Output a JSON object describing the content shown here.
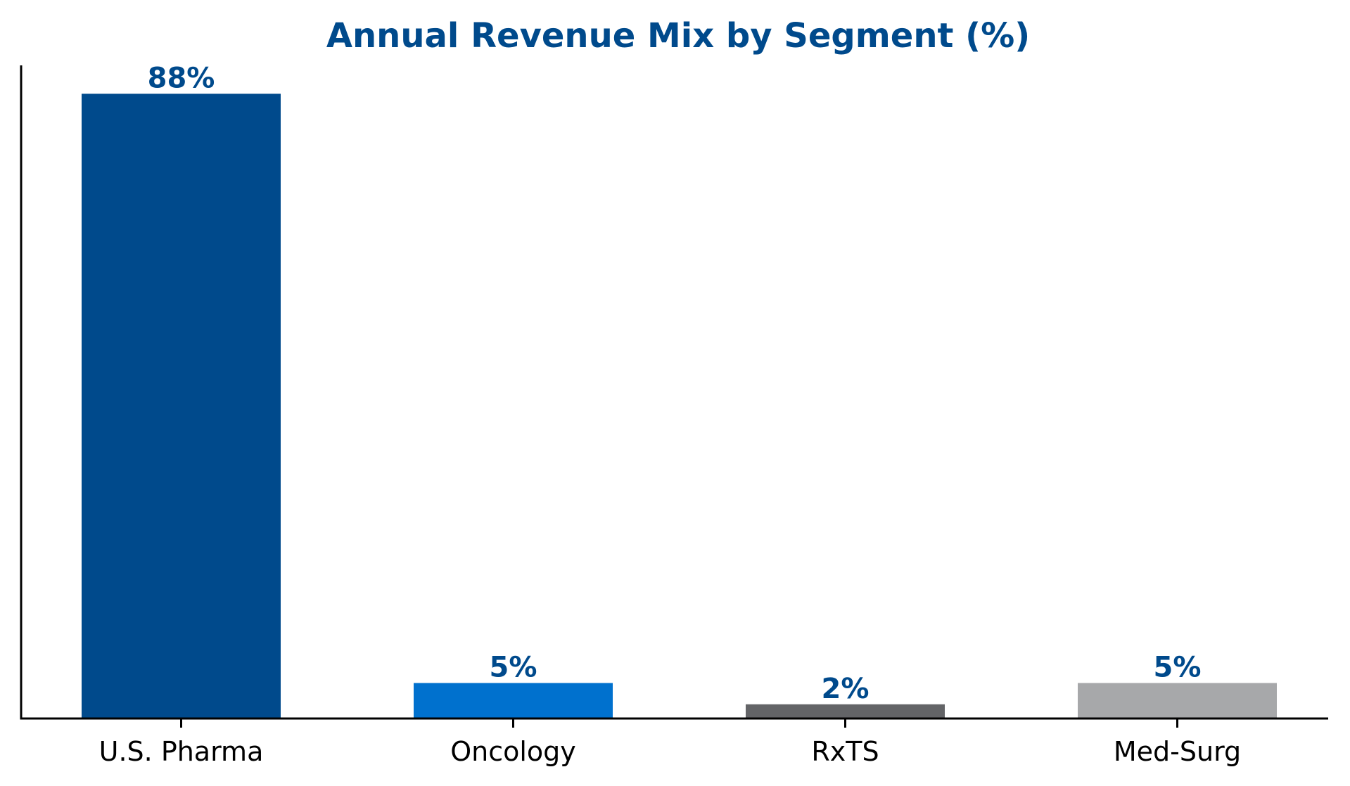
{
  "chart_data": {
    "type": "bar",
    "title": "Annual Revenue Mix by Segment (%)",
    "xlabel": "",
    "ylabel": "",
    "categories": [
      "U.S. Pharma",
      "Oncology",
      "RxTS",
      "Med-Surg"
    ],
    "values": [
      88,
      5,
      2,
      5
    ],
    "value_labels": [
      "88%",
      "5%",
      "2%",
      "5%"
    ],
    "colors": [
      "#004a8c",
      "#0071ce",
      "#636467",
      "#a7a8aa"
    ],
    "label_color": "#004a8c",
    "title_color": "#004a8c",
    "ylim": [
      0,
      92
    ],
    "grid": false,
    "legend": "none"
  }
}
